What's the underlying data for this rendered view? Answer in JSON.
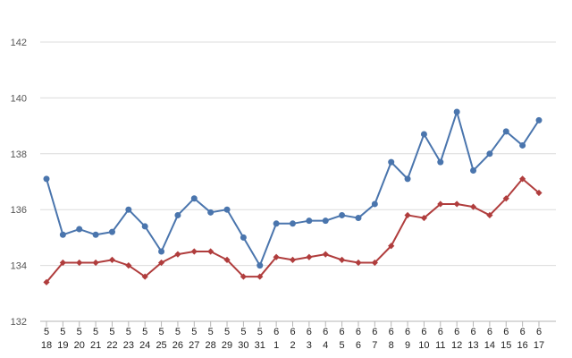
{
  "chart_data": {
    "type": "line",
    "categories": [
      [
        "5",
        "18"
      ],
      [
        "5",
        "19"
      ],
      [
        "5",
        "20"
      ],
      [
        "5",
        "21"
      ],
      [
        "5",
        "22"
      ],
      [
        "5",
        "23"
      ],
      [
        "5",
        "24"
      ],
      [
        "5",
        "25"
      ],
      [
        "5",
        "26"
      ],
      [
        "5",
        "27"
      ],
      [
        "5",
        "28"
      ],
      [
        "5",
        "29"
      ],
      [
        "5",
        "30"
      ],
      [
        "5",
        "31"
      ],
      [
        "6",
        "1"
      ],
      [
        "6",
        "2"
      ],
      [
        "6",
        "3"
      ],
      [
        "6",
        "4"
      ],
      [
        "6",
        "5"
      ],
      [
        "6",
        "6"
      ],
      [
        "6",
        "7"
      ],
      [
        "6",
        "8"
      ],
      [
        "6",
        "9"
      ],
      [
        "6",
        "10"
      ],
      [
        "6",
        "11"
      ],
      [
        "6",
        "12"
      ],
      [
        "6",
        "13"
      ],
      [
        "6",
        "14"
      ],
      [
        "6",
        "15"
      ],
      [
        "6",
        "16"
      ],
      [
        "6",
        "17"
      ]
    ],
    "ylim": [
      132,
      142
    ],
    "yticks": [
      132,
      134,
      136,
      138,
      140,
      142
    ],
    "grid": true,
    "series": [
      {
        "color": "#4a75ad",
        "marker": "circle",
        "values": [
          137.1,
          135.1,
          135.3,
          135.1,
          135.2,
          136.0,
          135.4,
          134.5,
          135.8,
          136.4,
          135.9,
          136.0,
          135.0,
          134.0,
          135.5,
          135.5,
          135.6,
          135.6,
          135.8,
          135.7,
          136.2,
          137.7,
          137.1,
          138.7,
          137.7,
          139.5,
          137.4,
          138.0,
          138.8,
          138.3,
          139.2
        ]
      },
      {
        "color": "#b03d3d",
        "marker": "diamond",
        "values": [
          133.4,
          134.1,
          134.1,
          134.1,
          134.2,
          134.0,
          133.6,
          134.1,
          134.4,
          134.5,
          134.5,
          134.2,
          133.6,
          133.6,
          134.3,
          134.2,
          134.3,
          134.4,
          134.2,
          134.1,
          134.1,
          134.7,
          135.8,
          135.7,
          136.2,
          136.2,
          136.1,
          135.8,
          136.4,
          137.1,
          136.6
        ]
      }
    ]
  }
}
